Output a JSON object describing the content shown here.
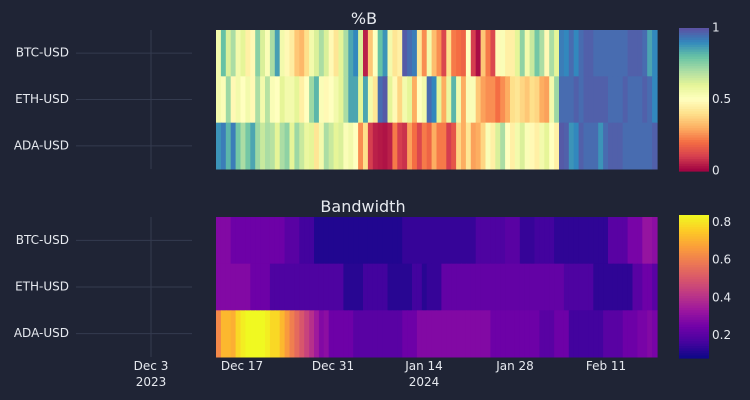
{
  "chart_data": [
    {
      "type": "heatmap",
      "title": "%B",
      "rows": [
        "BTC-USD",
        "ETH-USD",
        "ADA-USD"
      ],
      "x_start": "2023-12-13",
      "x_step_days": 1,
      "colorscale": "Spectral",
      "zlim": [
        0,
        1
      ],
      "colorbar_ticks": [
        "0",
        "0.5",
        "1"
      ],
      "z": [
        [
          0.55,
          0.8,
          0.62,
          0.7,
          0.55,
          0.6,
          0.45,
          0.48,
          0.75,
          0.62,
          0.52,
          0.7,
          0.86,
          0.55,
          0.48,
          0.44,
          0.35,
          0.32,
          0.4,
          0.55,
          0.62,
          0.7,
          0.62,
          0.48,
          0.42,
          0.6,
          0.7,
          0.85,
          0.9,
          0.62,
          0.05,
          0.35,
          0.5,
          0.8,
          0.88,
          0.55,
          0.42,
          0.45,
          0.98,
          0.95,
          0.92,
          0.42,
          0.25,
          0.55,
          0.33,
          0.25,
          0.12,
          0.4,
          0.22,
          0.2,
          0.18,
          0.5,
          0.1,
          0.02,
          0.35,
          0.22,
          0.12,
          0.48,
          0.52,
          0.45,
          0.45,
          0.6,
          0.74,
          0.55,
          0.65,
          0.78,
          0.7,
          0.48,
          0.7,
          0.6,
          0.92,
          0.9,
          0.95,
          0.9,
          0.95,
          0.97,
          0.97,
          0.95,
          0.95,
          0.95,
          0.95,
          0.95,
          0.95,
          0.95,
          0.97,
          0.97,
          0.97,
          0.95,
          0.85,
          0.9
        ],
        [
          0.55,
          0.52,
          0.72,
          0.48,
          0.55,
          0.5,
          0.55,
          0.48,
          0.7,
          0.55,
          0.68,
          0.52,
          0.5,
          0.6,
          0.55,
          0.55,
          0.6,
          0.45,
          0.5,
          0.72,
          0.82,
          0.52,
          0.48,
          0.5,
          0.55,
          0.6,
          0.7,
          0.85,
          0.85,
          0.6,
          0.85,
          0.55,
          0.42,
          0.95,
          0.98,
          0.6,
          0.48,
          0.38,
          0.55,
          0.6,
          0.3,
          0.5,
          0.55,
          0.95,
          0.9,
          0.6,
          0.3,
          0.58,
          0.82,
          0.55,
          0.3,
          0.52,
          0.52,
          0.35,
          0.28,
          0.25,
          0.25,
          0.2,
          0.25,
          0.3,
          0.4,
          0.42,
          0.38,
          0.35,
          0.4,
          0.38,
          0.3,
          0.28,
          0.55,
          0.72,
          0.95,
          0.95,
          0.95,
          0.97,
          0.95,
          0.97,
          0.97,
          0.97,
          0.97,
          0.97,
          0.95,
          0.95,
          0.95,
          0.97,
          0.95,
          0.95,
          0.95,
          0.97,
          0.95,
          0.9
        ],
        [
          0.88,
          0.92,
          0.82,
          0.92,
          0.78,
          0.7,
          0.78,
          0.85,
          0.72,
          0.65,
          0.7,
          0.68,
          0.6,
          0.7,
          0.74,
          0.6,
          0.72,
          0.65,
          0.58,
          0.6,
          0.42,
          0.55,
          0.7,
          0.65,
          0.6,
          0.62,
          0.52,
          0.55,
          0.5,
          0.25,
          0.4,
          0.1,
          0.05,
          0.04,
          0.03,
          0.05,
          0.22,
          0.1,
          0.08,
          0.28,
          0.2,
          0.12,
          0.22,
          0.18,
          0.3,
          0.22,
          0.22,
          0.1,
          0.15,
          0.38,
          0.3,
          0.42,
          0.28,
          0.3,
          0.38,
          0.52,
          0.45,
          0.62,
          0.7,
          0.5,
          0.45,
          0.55,
          0.62,
          0.52,
          0.48,
          0.45,
          0.55,
          0.6,
          0.5,
          0.45,
          0.98,
          0.97,
          0.88,
          0.9,
          0.97,
          0.95,
          0.95,
          0.95,
          0.88,
          0.95,
          0.97,
          0.97,
          0.97,
          0.95,
          0.95,
          0.95,
          0.95,
          0.95,
          0.95,
          0.97
        ]
      ]
    },
    {
      "type": "heatmap",
      "title": "Bandwidth",
      "rows": [
        "BTC-USD",
        "ETH-USD",
        "ADA-USD"
      ],
      "x_start": "2023-12-13",
      "x_step_days": 1,
      "colorscale": "Plasma",
      "zlim": [
        0.08,
        0.84
      ],
      "colorbar_ticks": [
        "0.2",
        "0.4",
        "0.6",
        "0.8"
      ],
      "z": [
        [
          0.28,
          0.28,
          0.28,
          0.24,
          0.24,
          0.24,
          0.24,
          0.24,
          0.24,
          0.24,
          0.24,
          0.24,
          0.24,
          0.24,
          0.2,
          0.2,
          0.2,
          0.16,
          0.16,
          0.16,
          0.11,
          0.11,
          0.11,
          0.11,
          0.11,
          0.11,
          0.11,
          0.11,
          0.11,
          0.11,
          0.11,
          0.11,
          0.11,
          0.11,
          0.11,
          0.11,
          0.11,
          0.11,
          0.14,
          0.14,
          0.14,
          0.14,
          0.14,
          0.14,
          0.14,
          0.14,
          0.14,
          0.14,
          0.14,
          0.14,
          0.14,
          0.14,
          0.14,
          0.18,
          0.18,
          0.18,
          0.18,
          0.18,
          0.18,
          0.2,
          0.2,
          0.2,
          0.14,
          0.14,
          0.14,
          0.16,
          0.16,
          0.16,
          0.16,
          0.13,
          0.13,
          0.13,
          0.13,
          0.13,
          0.13,
          0.13,
          0.13,
          0.13,
          0.13,
          0.13,
          0.2,
          0.2,
          0.2,
          0.2,
          0.26,
          0.26,
          0.26,
          0.32,
          0.32,
          0.3
        ],
        [
          0.28,
          0.28,
          0.28,
          0.28,
          0.28,
          0.28,
          0.28,
          0.24,
          0.24,
          0.24,
          0.24,
          0.18,
          0.18,
          0.18,
          0.18,
          0.18,
          0.18,
          0.18,
          0.18,
          0.18,
          0.18,
          0.18,
          0.18,
          0.18,
          0.18,
          0.18,
          0.12,
          0.12,
          0.12,
          0.12,
          0.16,
          0.16,
          0.16,
          0.16,
          0.16,
          0.12,
          0.12,
          0.12,
          0.12,
          0.12,
          0.16,
          0.16,
          0.12,
          0.14,
          0.14,
          0.14,
          0.22,
          0.22,
          0.22,
          0.22,
          0.22,
          0.22,
          0.22,
          0.22,
          0.22,
          0.22,
          0.22,
          0.22,
          0.22,
          0.22,
          0.22,
          0.22,
          0.22,
          0.22,
          0.22,
          0.22,
          0.22,
          0.22,
          0.22,
          0.22,
          0.22,
          0.18,
          0.18,
          0.18,
          0.18,
          0.18,
          0.18,
          0.13,
          0.13,
          0.13,
          0.13,
          0.13,
          0.13,
          0.13,
          0.13,
          0.2,
          0.2,
          0.24,
          0.24,
          0.2
        ],
        [
          0.62,
          0.72,
          0.72,
          0.7,
          0.78,
          0.82,
          0.84,
          0.84,
          0.84,
          0.84,
          0.82,
          0.78,
          0.78,
          0.72,
          0.66,
          0.6,
          0.55,
          0.5,
          0.45,
          0.4,
          0.34,
          0.28,
          0.3,
          0.24,
          0.24,
          0.24,
          0.24,
          0.24,
          0.2,
          0.2,
          0.2,
          0.2,
          0.2,
          0.2,
          0.2,
          0.2,
          0.2,
          0.2,
          0.24,
          0.24,
          0.24,
          0.28,
          0.28,
          0.28,
          0.28,
          0.28,
          0.28,
          0.28,
          0.28,
          0.28,
          0.28,
          0.28,
          0.28,
          0.28,
          0.28,
          0.28,
          0.24,
          0.24,
          0.24,
          0.24,
          0.24,
          0.24,
          0.24,
          0.24,
          0.24,
          0.24,
          0.2,
          0.2,
          0.2,
          0.24,
          0.24,
          0.24,
          0.16,
          0.16,
          0.16,
          0.16,
          0.16,
          0.16,
          0.16,
          0.2,
          0.2,
          0.2,
          0.2,
          0.24,
          0.24,
          0.24,
          0.26,
          0.26,
          0.28,
          0.26
        ]
      ]
    }
  ],
  "x_axis": {
    "ticks": [
      {
        "date": "2023-12-03",
        "label": "Dec 3",
        "sublabel": "2023"
      },
      {
        "date": "2023-12-17",
        "label": "Dec 17",
        "sublabel": ""
      },
      {
        "date": "2023-12-31",
        "label": "Dec 31",
        "sublabel": ""
      },
      {
        "date": "2024-01-14",
        "label": "Jan 14",
        "sublabel": "2024"
      },
      {
        "date": "2024-01-28",
        "label": "Jan 28",
        "sublabel": ""
      },
      {
        "date": "2024-02-11",
        "label": "Feb 11",
        "sublabel": ""
      }
    ]
  }
}
